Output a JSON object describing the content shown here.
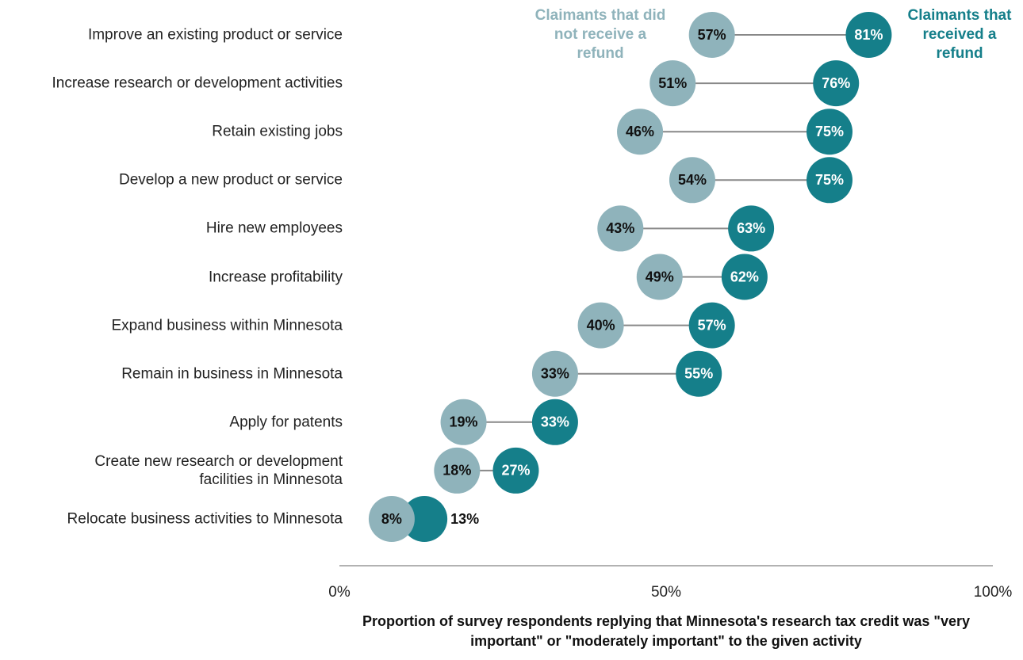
{
  "chart_data": {
    "type": "dumbbell",
    "categories": [
      "Improve an existing product or service",
      "Increase research or development activities",
      "Retain existing jobs",
      "Develop a new product or service",
      "Hire new employees",
      "Increase profitability",
      "Expand business within Minnesota",
      "Remain in business in Minnesota",
      "Apply for patents",
      "Create new research or development facilities in Minnesota",
      "Relocate business activities to Minnesota"
    ],
    "series": [
      {
        "name": "Claimants that did not receive a refund",
        "color": "#8fb3bb",
        "values": [
          57,
          51,
          46,
          54,
          43,
          49,
          40,
          33,
          19,
          18,
          8
        ],
        "value_labels": [
          "57%",
          "51%",
          "46%",
          "54%",
          "43%",
          "49%",
          "40%",
          "33%",
          "19%",
          "18%",
          "8%"
        ]
      },
      {
        "name": "Claimants that received a refund",
        "color": "#157f8a",
        "values": [
          81,
          76,
          75,
          75,
          63,
          62,
          57,
          55,
          33,
          27,
          13
        ],
        "value_labels": [
          "81%",
          "76%",
          "75%",
          "75%",
          "63%",
          "62%",
          "57%",
          "55%",
          "33%",
          "27%",
          "13%"
        ]
      }
    ],
    "xlim": [
      0,
      100
    ],
    "xticks": [
      {
        "value": 0,
        "label": "0%"
      },
      {
        "value": 50,
        "label": "50%"
      },
      {
        "value": 100,
        "label": "100%"
      }
    ],
    "xlabel": "Proportion of survey respondents replying that Minnesota's research tax credit was \"very important\" or \"moderately important\" to the given activity"
  }
}
